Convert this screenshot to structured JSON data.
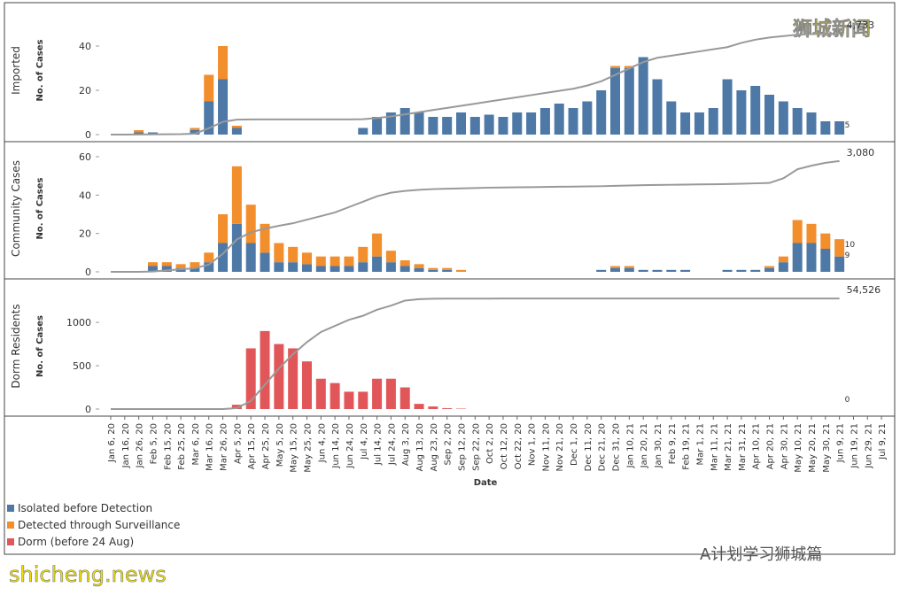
{
  "chart_data": [
    {
      "type": "bar",
      "title": "Imported",
      "ylabel": "No. of Cases",
      "ylim": [
        0,
        58
      ],
      "yticks": [
        0,
        20,
        40
      ],
      "series": [
        {
          "color": "#4e79a7",
          "values": [
            0,
            0,
            1,
            1,
            0,
            0,
            2,
            15,
            25,
            3,
            0,
            0,
            0,
            0,
            0,
            0,
            0,
            0,
            3,
            8,
            10,
            12,
            10,
            8,
            8,
            10,
            8,
            9,
            8,
            10,
            10,
            12,
            14,
            12,
            15,
            20,
            30,
            30,
            35,
            25,
            15,
            10,
            10,
            12,
            25,
            20,
            22,
            18,
            15,
            12,
            10,
            6,
            6,
            null,
            null,
            null
          ]
        },
        {
          "color": "#f28e2b",
          "values": [
            0,
            0,
            1,
            0,
            0,
            0,
            1,
            12,
            15,
            1,
            0,
            0,
            0,
            0,
            0,
            0,
            0,
            0,
            0,
            0,
            0,
            0,
            0,
            0,
            0,
            0,
            0,
            0,
            0,
            0,
            0,
            0,
            0,
            0,
            0,
            0,
            1,
            1,
            0,
            0,
            0,
            0,
            0,
            0,
            0,
            0,
            0,
            0,
            0,
            0,
            0,
            0,
            0,
            null,
            null,
            null
          ]
        }
      ],
      "cumulative": {
        "color": "#999999",
        "axis": "y2",
        "values": [
          0,
          0,
          5,
          10,
          15,
          20,
          40,
          300,
          600,
          700,
          710,
          710,
          710,
          710,
          710,
          710,
          710,
          710,
          720,
          780,
          850,
          950,
          1050,
          1150,
          1250,
          1350,
          1450,
          1550,
          1650,
          1750,
          1850,
          1950,
          2050,
          2150,
          2300,
          2500,
          2800,
          3100,
          3400,
          3600,
          3700,
          3800,
          3900,
          4000,
          4100,
          4300,
          4450,
          4550,
          4620,
          4680,
          4710,
          4725,
          4733,
          null,
          null,
          null
        ],
        "end_label": "4,733"
      },
      "y2lim": [
        0,
        6020
      ],
      "last_labels": [
        "5"
      ]
    },
    {
      "type": "bar",
      "title": "Community Cases",
      "ylabel": "No. of Cases",
      "ylim": [
        0,
        66
      ],
      "yticks": [
        0,
        20,
        40,
        60
      ],
      "series": [
        {
          "color": "#4e79a7",
          "values": [
            0,
            0,
            0,
            3,
            3,
            2,
            2,
            5,
            15,
            25,
            15,
            10,
            5,
            5,
            4,
            3,
            3,
            3,
            5,
            8,
            5,
            3,
            2,
            1,
            1,
            0,
            0,
            0,
            0,
            0,
            0,
            0,
            0,
            0,
            0,
            1,
            2,
            2,
            1,
            1,
            1,
            1,
            0,
            0,
            1,
            1,
            1,
            2,
            5,
            15,
            15,
            12,
            8,
            null,
            null,
            null
          ]
        },
        {
          "color": "#f28e2b",
          "values": [
            0,
            0,
            0,
            2,
            2,
            2,
            3,
            5,
            15,
            30,
            20,
            15,
            10,
            8,
            6,
            5,
            5,
            5,
            8,
            12,
            6,
            3,
            2,
            1,
            1,
            1,
            0,
            0,
            0,
            0,
            0,
            0,
            0,
            0,
            0,
            0,
            1,
            1,
            0,
            0,
            0,
            0,
            0,
            0,
            0,
            0,
            0,
            1,
            3,
            12,
            10,
            8,
            9,
            null,
            null,
            null
          ]
        }
      ],
      "cumulative": {
        "color": "#999999",
        "axis": "y2",
        "values": [
          0,
          0,
          0,
          10,
          40,
          70,
          100,
          200,
          500,
          900,
          1100,
          1200,
          1280,
          1350,
          1450,
          1550,
          1650,
          1800,
          1950,
          2100,
          2200,
          2250,
          2280,
          2300,
          2310,
          2320,
          2330,
          2340,
          2345,
          2350,
          2355,
          2360,
          2365,
          2370,
          2375,
          2380,
          2390,
          2400,
          2410,
          2415,
          2420,
          2425,
          2430,
          2435,
          2440,
          2450,
          2460,
          2470,
          2600,
          2850,
          2950,
          3030,
          3080,
          null,
          null,
          null
        ],
        "end_label": "3,080"
      },
      "y2lim": [
        0,
        3520
      ],
      "last_labels": [
        "10",
        "9"
      ]
    },
    {
      "type": "bar",
      "title": "Dorm Residents",
      "ylabel": "No. of Cases",
      "ylim": [
        0,
        1450
      ],
      "yticks": [
        0,
        500,
        1000
      ],
      "xlabel": "Date",
      "categories": [
        "Jan 6, 20",
        "Jan 16, 20",
        "Jan 26, 20",
        "Feb 5, 20",
        "Feb 15, 20",
        "Feb 25, 20",
        "Mar 6, 20",
        "Mar 16, 20",
        "Mar 26, 20",
        "Apr 5, 20",
        "Apr 15, 20",
        "Apr 25, 20",
        "May 5, 20",
        "May 15, 20",
        "May 25, 20",
        "Jun 4, 20",
        "Jun 14, 20",
        "Jun 24, 20",
        "Jul 4, 20",
        "Jul 14, 20",
        "Jul 24, 20",
        "Aug 3, 20",
        "Aug 13, 20",
        "Aug 23, 20",
        "Sep 2, 20",
        "Sep 12, 20",
        "Sep 22, 20",
        "Oct 2, 20",
        "Oct 12, 20",
        "Oct 22, 20",
        "Nov 1, 20",
        "Nov 11, 20",
        "Nov 21, 20",
        "Dec 1, 20",
        "Dec 11, 20",
        "Dec 21, 20",
        "Dec 31, 20",
        "Jan 10, 21",
        "Jan 20, 21",
        "Jan 30, 21",
        "Feb 9, 21",
        "Feb 19, 21",
        "Mar 1, 21",
        "Mar 11, 21",
        "Mar 21, 21",
        "Mar 31, 21",
        "Apr 10, 21",
        "Apr 20, 21",
        "Apr 30, 21",
        "May 10, 21",
        "May 20, 21",
        "May 30, 21",
        "Jun 9, 21",
        "Jun 19, 21",
        "Jun 29, 21",
        "Jul 9, 21"
      ],
      "series": [
        {
          "name": "Dorm (before 24 Aug)",
          "color": "#e15759",
          "values": [
            0,
            0,
            0,
            0,
            0,
            0,
            0,
            0,
            0,
            50,
            700,
            900,
            750,
            700,
            550,
            350,
            300,
            200,
            200,
            350,
            350,
            250,
            60,
            30,
            10,
            5,
            0,
            0,
            0,
            0,
            0,
            0,
            0,
            0,
            0,
            0,
            0,
            0,
            0,
            0,
            0,
            0,
            0,
            0,
            0,
            0,
            0,
            0,
            0,
            0,
            0,
            0,
            0,
            null,
            null,
            null
          ]
        }
      ],
      "cumulative": {
        "color": "#999999",
        "axis": "y2",
        "values": [
          0,
          0,
          0,
          0,
          0,
          0,
          0,
          0,
          0,
          500,
          4000,
          12000,
          20000,
          27000,
          33000,
          38000,
          41000,
          44000,
          46000,
          49000,
          51000,
          53500,
          54200,
          54400,
          54450,
          54480,
          54490,
          54495,
          54500,
          54500,
          54500,
          54500,
          54500,
          54500,
          54500,
          54500,
          54500,
          54500,
          54500,
          54500,
          54500,
          54500,
          54500,
          54500,
          54500,
          54500,
          54500,
          54500,
          54500,
          54500,
          54500,
          54500,
          54526,
          null,
          null,
          null
        ],
        "end_label": "54,526"
      },
      "y2lim": [
        0,
        62000
      ],
      "last_labels": [
        "0"
      ]
    }
  ],
  "legend": [
    "Isolated before Detection",
    "Detected through Surveillance"
  ],
  "watermarks": {
    "top": "狮城新闻",
    "bottom_left": "shicheng.news",
    "bottom_right": "A计划学习狮城篇"
  }
}
